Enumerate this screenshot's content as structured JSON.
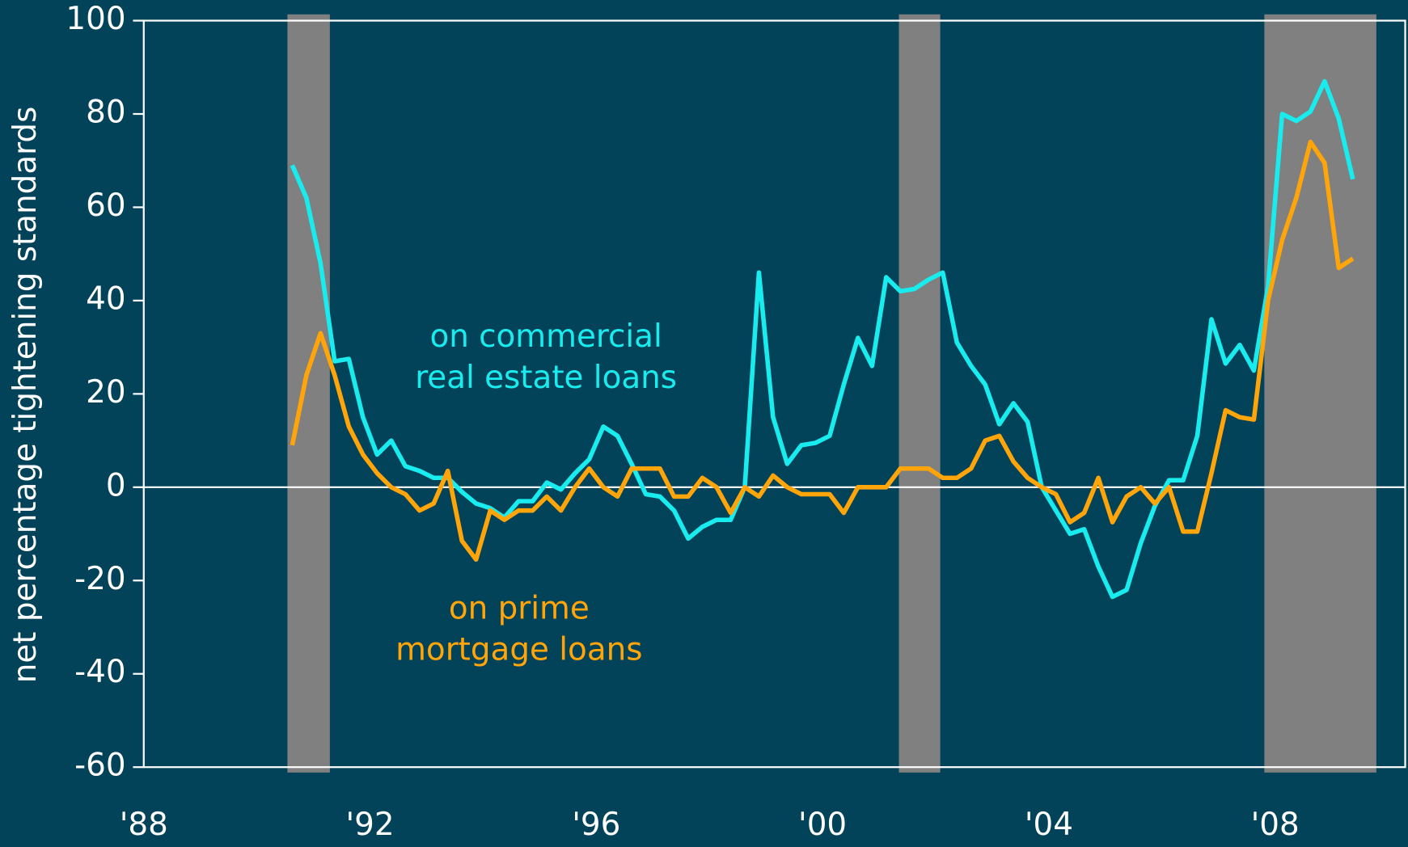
{
  "chart_data": {
    "type": "line",
    "y_label": "net percentage tightening standards",
    "xlim": [
      1988,
      2010.3
    ],
    "xticks": [
      {
        "value": 1988,
        "label": "'88"
      },
      {
        "value": 1992,
        "label": "'92"
      },
      {
        "value": 1996,
        "label": "'96"
      },
      {
        "value": 2000,
        "label": "'00"
      },
      {
        "value": 2004,
        "label": "'04"
      },
      {
        "value": 2008,
        "label": "'08"
      }
    ],
    "ylim": [
      -60,
      100
    ],
    "yticks": [
      -60,
      -40,
      -20,
      0,
      20,
      40,
      60,
      80,
      100
    ],
    "shaded_periods": [
      [
        1990.54,
        1991.29
      ],
      [
        2001.35,
        2002.08
      ],
      [
        2007.81,
        2009.79
      ]
    ],
    "shade_color": "#808080",
    "x": [
      1990.625,
      1990.875,
      1991.125,
      1991.375,
      1991.625,
      1991.875,
      1992.125,
      1992.375,
      1992.625,
      1992.875,
      1993.125,
      1993.375,
      1993.625,
      1993.875,
      1994.125,
      1994.375,
      1994.625,
      1994.875,
      1995.125,
      1995.375,
      1995.625,
      1995.875,
      1996.125,
      1996.375,
      1996.625,
      1996.875,
      1997.125,
      1997.375,
      1997.625,
      1997.875,
      1998.125,
      1998.375,
      1998.625,
      1998.875,
      1999.125,
      1999.375,
      1999.625,
      1999.875,
      2000.125,
      2000.375,
      2000.625,
      2000.875,
      2001.125,
      2001.375,
      2001.625,
      2001.875,
      2002.125,
      2002.375,
      2002.625,
      2002.875,
      2003.125,
      2003.375,
      2003.625,
      2003.875,
      2004.125,
      2004.375,
      2004.625,
      2004.875,
      2005.125,
      2005.375,
      2005.625,
      2005.875,
      2006.125,
      2006.375,
      2006.625,
      2006.875,
      2007.125,
      2007.375,
      2007.625,
      2007.875,
      2008.125,
      2008.375,
      2008.625,
      2008.875,
      2009.125,
      2009.375
    ],
    "series": [
      {
        "name": "on commercial real estate loans",
        "color": "#19ecee",
        "values": [
          69,
          62,
          48,
          27,
          27.5,
          15,
          7,
          10,
          4.5,
          3.5,
          2,
          2,
          -1,
          -3.5,
          -4.5,
          -6.5,
          -3,
          -3,
          1,
          -0.5,
          3,
          6,
          13,
          11,
          5,
          -1.5,
          -2,
          -5,
          -11,
          -8.5,
          -7,
          -7,
          0,
          46,
          15,
          5,
          9,
          9.5,
          11,
          22,
          32,
          26,
          45,
          42,
          42.5,
          44.5,
          46,
          31,
          26,
          22,
          13.5,
          18,
          14,
          0,
          -5,
          -10,
          -9,
          -17,
          -23.5,
          -22,
          -12,
          -4,
          1.5,
          1.5,
          11,
          36,
          26.5,
          30.5,
          25,
          43,
          80,
          78.5,
          80.5,
          87,
          79,
          66
        ]
      },
      {
        "name": "on prime mortgage loans",
        "color": "#ffa50a",
        "values": [
          9,
          24,
          33,
          24,
          13,
          7,
          3,
          0,
          -1.5,
          -5,
          -3.5,
          3.5,
          -11.5,
          -15.5,
          -5,
          -7,
          -5,
          -5,
          -2,
          -5,
          0,
          4,
          0,
          -2,
          4,
          4,
          4,
          -2,
          -2,
          2,
          0,
          -5.5,
          0,
          -2,
          2.5,
          0,
          -1.5,
          -1.5,
          -1.5,
          -5.5,
          0,
          0,
          0,
          4,
          4,
          4,
          2,
          2,
          4,
          10,
          11,
          5.5,
          2,
          0,
          -1.5,
          -7.5,
          -5.5,
          2,
          -7.5,
          -2,
          0,
          -3.5,
          0,
          -9.5,
          -9.5,
          3,
          16.5,
          15,
          14.5,
          40,
          53,
          62,
          74,
          69.5,
          47,
          49
        ]
      }
    ],
    "annotations": [
      {
        "lines": [
          "on commercial",
          "real estate loans"
        ],
        "color": "#19ecee"
      },
      {
        "lines": [
          "on prime",
          "mortgage loans"
        ],
        "color": "#ffa50a"
      }
    ]
  }
}
